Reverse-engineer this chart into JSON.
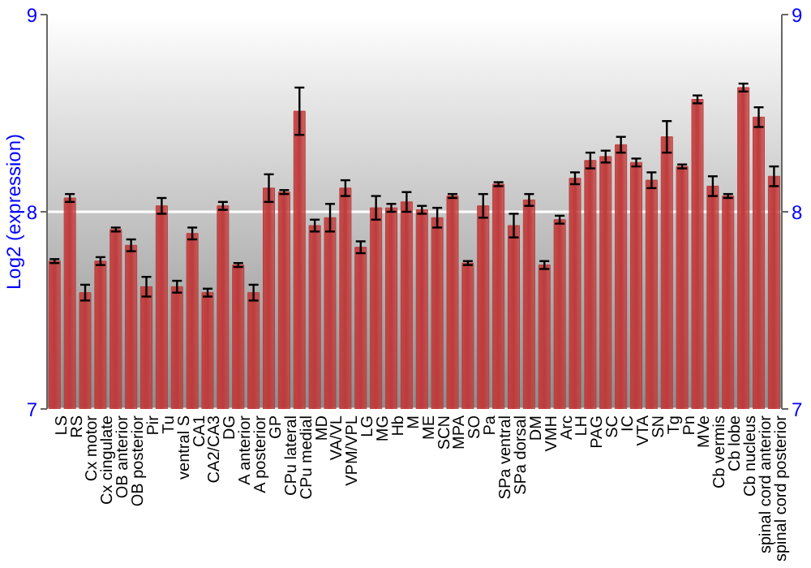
{
  "chart_data": {
    "type": "bar",
    "ylabel": "Log2 (expression)",
    "categories": [
      "LS",
      "RS",
      "Cx motor",
      "Cx cingulate",
      "OB anterior",
      "OB posterior",
      "Pir",
      "Tu",
      "ventral S",
      "CA1",
      "CA2/CA3",
      "DG",
      "A anterior",
      "A posterior",
      "GP",
      "CPu lateral",
      "CPu medial",
      "MD",
      "VA/VL",
      "VPM/VPL",
      "LG",
      "MG",
      "Hb",
      "M",
      "ME",
      "SCN",
      "MPA",
      "SO",
      "Pa",
      "SPa ventral",
      "SPa dorsal",
      "DM",
      "VMH",
      "Arc",
      "LH",
      "PAG",
      "SC",
      "IC",
      "VTA",
      "SN",
      "Tg",
      "Pn",
      "MVe",
      "Cb vermis",
      "Cb lobe",
      "Cb nucleus",
      "spinal cord anterior",
      "spinal cord posterior"
    ],
    "series": [
      {
        "color": "#c03a3a",
        "values": [
          7.75,
          8.07,
          7.59,
          7.75,
          7.91,
          7.83,
          7.62,
          8.03,
          7.62,
          7.89,
          7.59,
          8.03,
          7.73,
          7.59,
          8.12,
          8.1,
          8.51,
          7.93,
          7.97,
          8.12,
          7.82,
          8.02,
          8.02,
          8.05,
          8.01,
          7.97,
          8.08,
          7.74,
          8.03,
          8.14,
          7.93,
          8.06,
          7.73,
          7.96,
          8.17,
          8.26,
          8.28,
          8.34,
          8.25,
          8.16,
          8.38,
          8.23,
          8.57,
          8.13,
          8.08,
          8.63,
          8.48,
          8.18
        ],
        "errors": [
          0.01,
          0.02,
          0.04,
          0.02,
          0.01,
          0.03,
          0.05,
          0.04,
          0.03,
          0.03,
          0.02,
          0.02,
          0.01,
          0.04,
          0.07,
          0.01,
          0.12,
          0.03,
          0.07,
          0.04,
          0.03,
          0.06,
          0.02,
          0.05,
          0.02,
          0.05,
          0.01,
          0.01,
          0.06,
          0.01,
          0.06,
          0.03,
          0.02,
          0.02,
          0.03,
          0.04,
          0.03,
          0.04,
          0.02,
          0.04,
          0.08,
          0.01,
          0.02,
          0.05,
          0.01,
          0.02,
          0.05,
          0.05
        ]
      }
    ],
    "ylim": [
      7,
      9
    ],
    "yticks": [
      7,
      8,
      9
    ],
    "y2lim": [
      7,
      9
    ],
    "y2ticks": [
      7,
      8,
      9
    ],
    "grid": "y"
  }
}
